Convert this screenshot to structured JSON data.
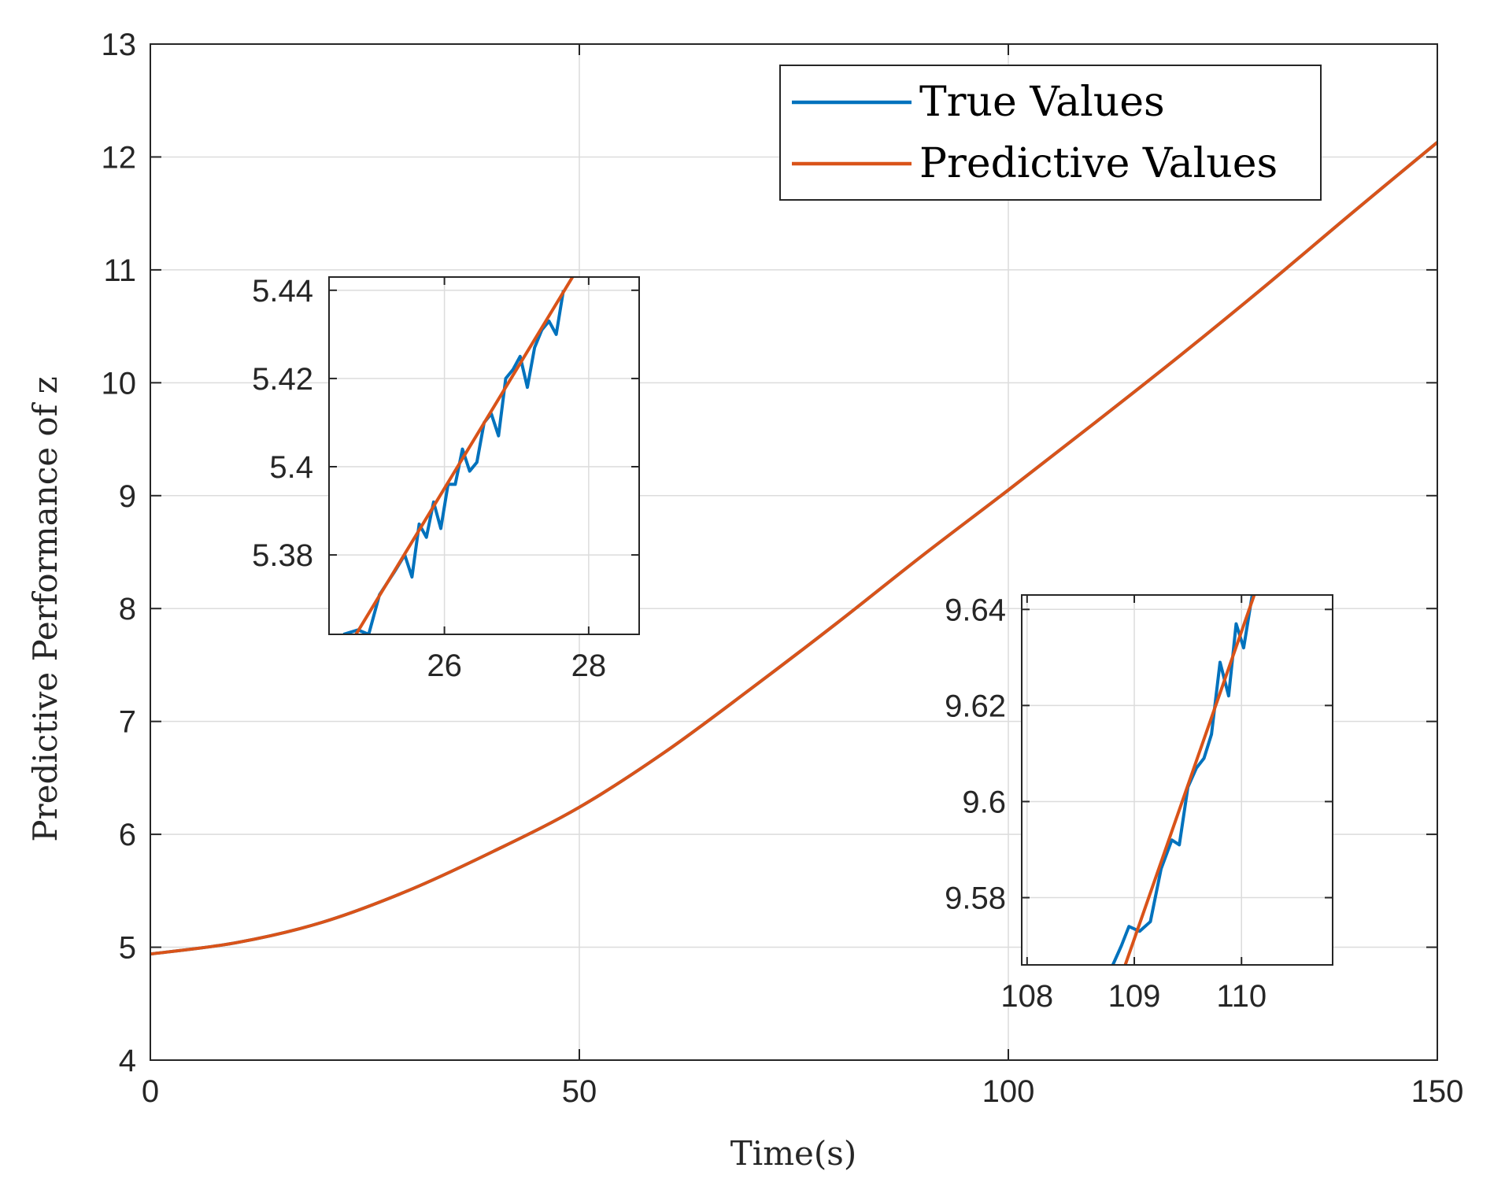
{
  "chart_data": {
    "type": "line",
    "title": "",
    "xlabel": "Time(s)",
    "ylabel": "Predictive Performance of z",
    "xlim": [
      0,
      150
    ],
    "ylim": [
      4,
      13
    ],
    "xticks": [
      "0",
      "50",
      "100",
      "150"
    ],
    "yticks": [
      "4",
      "5",
      "6",
      "7",
      "8",
      "9",
      "10",
      "11",
      "12",
      "13"
    ],
    "grid": true,
    "legend_position": "top-right",
    "colors": {
      "true": "#0072BD",
      "pred": "#D95319",
      "axis": "#262626",
      "grid": "#dcdcdc"
    },
    "x": [
      0,
      10,
      20,
      30,
      40,
      50,
      60,
      70,
      80,
      90,
      100,
      110,
      120,
      130,
      140,
      150
    ],
    "series": [
      {
        "name": "True Values",
        "values": [
          4.94,
          5.04,
          5.22,
          5.5,
          5.85,
          6.24,
          6.73,
          7.29,
          7.87,
          8.47,
          9.05,
          9.64,
          10.24,
          10.86,
          11.5,
          12.13
        ]
      },
      {
        "name": "Predictive Values",
        "values": [
          4.94,
          5.04,
          5.22,
          5.5,
          5.85,
          6.24,
          6.73,
          7.29,
          7.87,
          8.47,
          9.05,
          9.64,
          10.24,
          10.86,
          11.5,
          12.13
        ]
      }
    ],
    "insets": [
      {
        "name": "inset-1",
        "xlim": [
          24.4,
          28.7
        ],
        "ylim": [
          5.362,
          5.443
        ],
        "xticks": [
          "26",
          "28"
        ],
        "yticks": [
          "5.38",
          "5.4",
          "5.42",
          "5.44"
        ],
        "true_x": [
          24.6,
          24.8,
          24.95,
          25.1,
          25.3,
          25.45,
          25.55,
          25.65,
          25.75,
          25.85,
          25.95,
          26.05,
          26.15,
          26.25,
          26.35,
          26.45,
          26.55,
          26.65,
          26.75,
          26.85,
          26.95,
          27.05,
          27.15,
          27.25,
          27.35,
          27.45,
          27.55,
          27.65
        ],
        "true_y": [
          5.362,
          5.363,
          5.362,
          5.371,
          5.376,
          5.38,
          5.375,
          5.387,
          5.384,
          5.392,
          5.386,
          5.396,
          5.396,
          5.404,
          5.399,
          5.401,
          5.41,
          5.412,
          5.407,
          5.42,
          5.422,
          5.425,
          5.418,
          5.427,
          5.431,
          5.433,
          5.43,
          5.44
        ],
        "pred_x": [
          24.7,
          27.85
        ],
        "pred_y": [
          5.36,
          5.445
        ]
      },
      {
        "name": "inset-2",
        "xlim": [
          107.95,
          110.85
        ],
        "ylim": [
          9.566,
          9.643
        ],
        "xticks": [
          "108",
          "109",
          "110"
        ],
        "yticks": [
          "9.58",
          "9.6",
          "9.62",
          "9.64"
        ],
        "true_x": [
          108.8,
          108.88,
          108.95,
          109.05,
          109.15,
          109.25,
          109.35,
          109.42,
          109.5,
          109.58,
          109.65,
          109.72,
          109.8,
          109.88,
          109.95,
          110.02,
          110.1
        ],
        "true_y": [
          9.566,
          9.57,
          9.574,
          9.573,
          9.575,
          9.586,
          9.592,
          9.591,
          9.603,
          9.607,
          9.609,
          9.614,
          9.629,
          9.622,
          9.637,
          9.632,
          9.643
        ],
        "pred_x": [
          108.9,
          110.15
        ],
        "pred_y": [
          9.565,
          9.645
        ]
      }
    ]
  }
}
